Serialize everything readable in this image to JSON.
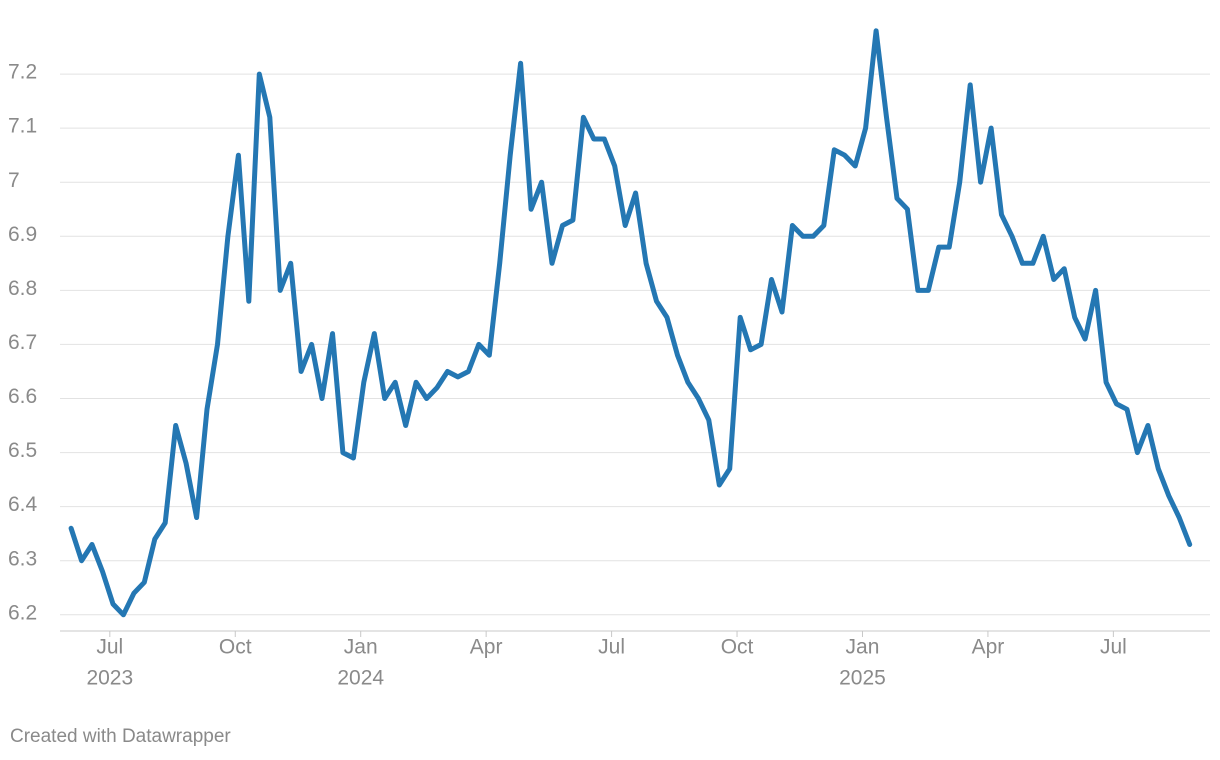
{
  "chart_data": {
    "type": "line",
    "x": [
      "2023-06",
      "2023-06",
      "2023-06",
      "2023-06",
      "2023-07",
      "2023-07",
      "2023-07",
      "2023-07",
      "2023-08",
      "2023-08",
      "2023-08",
      "2023-08",
      "2023-09",
      "2023-09",
      "2023-09",
      "2023-09",
      "2023-10",
      "2023-10",
      "2023-10",
      "2023-10",
      "2023-11",
      "2023-11",
      "2023-11",
      "2023-11",
      "2023-12",
      "2023-12",
      "2023-12",
      "2023-12",
      "2024-01",
      "2024-01",
      "2024-01",
      "2024-01",
      "2024-02",
      "2024-02",
      "2024-02",
      "2024-02",
      "2024-03",
      "2024-03",
      "2024-03",
      "2024-03",
      "2024-04",
      "2024-04",
      "2024-04",
      "2024-04",
      "2024-05",
      "2024-05",
      "2024-05",
      "2024-05",
      "2024-06",
      "2024-06",
      "2024-06",
      "2024-06",
      "2024-07",
      "2024-07",
      "2024-07",
      "2024-07",
      "2024-08",
      "2024-08",
      "2024-08",
      "2024-08",
      "2024-09",
      "2024-09",
      "2024-09",
      "2024-09",
      "2024-10",
      "2024-10",
      "2024-10",
      "2024-10",
      "2024-11",
      "2024-11",
      "2024-11",
      "2024-11",
      "2024-12",
      "2024-12",
      "2024-12",
      "2024-12",
      "2025-01",
      "2025-01",
      "2025-01",
      "2025-01",
      "2025-02",
      "2025-02",
      "2025-02",
      "2025-02",
      "2025-03",
      "2025-03",
      "2025-03",
      "2025-03",
      "2025-04",
      "2025-04",
      "2025-04",
      "2025-04",
      "2025-05",
      "2025-05",
      "2025-05",
      "2025-05",
      "2025-06",
      "2025-06",
      "2025-06",
      "2025-06",
      "2025-07",
      "2025-07",
      "2025-07",
      "2025-07",
      "2025-08",
      "2025-08",
      "2025-08",
      "2025-08"
    ],
    "series": [
      {
        "color": "#2477b3",
        "values": [
          6.36,
          6.3,
          6.33,
          6.28,
          6.22,
          6.2,
          6.24,
          6.26,
          6.34,
          6.37,
          6.55,
          6.48,
          6.38,
          6.58,
          6.7,
          6.9,
          7.05,
          6.78,
          7.2,
          7.12,
          6.8,
          6.85,
          6.65,
          6.7,
          6.6,
          6.72,
          6.5,
          6.49,
          6.63,
          6.72,
          6.6,
          6.63,
          6.55,
          6.63,
          6.6,
          6.62,
          6.65,
          6.64,
          6.65,
          6.7,
          6.68,
          6.85,
          7.05,
          7.22,
          6.95,
          7.0,
          6.85,
          6.92,
          6.93,
          7.12,
          7.08,
          7.08,
          7.03,
          6.92,
          6.98,
          6.85,
          6.78,
          6.75,
          6.68,
          6.63,
          6.6,
          6.56,
          6.44,
          6.47,
          6.75,
          6.69,
          6.7,
          6.82,
          6.76,
          6.92,
          6.9,
          6.9,
          6.92,
          7.06,
          7.05,
          7.03,
          7.1,
          7.28,
          7.12,
          6.97,
          6.95,
          6.8,
          6.8,
          6.88,
          6.88,
          7.0,
          7.18,
          7.0,
          7.1,
          6.94,
          6.9,
          6.85,
          6.85,
          6.9,
          6.82,
          6.84,
          6.75,
          6.71,
          6.8,
          6.63,
          6.59,
          6.58,
          6.5,
          6.55,
          6.47,
          6.42,
          6.38,
          6.33
        ]
      }
    ],
    "xlim": [
      "2023-06",
      "2025-08"
    ],
    "xticks": [
      {
        "value": "2023-07",
        "label": "Jul",
        "year": "2023"
      },
      {
        "value": "2023-10",
        "label": "Oct"
      },
      {
        "value": "2024-01",
        "label": "Jan",
        "year": "2024"
      },
      {
        "value": "2024-04",
        "label": "Apr"
      },
      {
        "value": "2024-07",
        "label": "Jul"
      },
      {
        "value": "2024-10",
        "label": "Oct"
      },
      {
        "value": "2025-01",
        "label": "Jan",
        "year": "2025"
      },
      {
        "value": "2025-04",
        "label": "Apr"
      },
      {
        "value": "2025-07",
        "label": "Jul"
      }
    ],
    "ylim": [
      6.17,
      7.3
    ],
    "yticks": [
      6.2,
      6.3,
      6.4,
      6.5,
      6.6,
      6.7,
      6.8,
      6.9,
      7.0,
      7.1,
      7.2
    ],
    "grid": true,
    "footer": "Created with Datawrapper"
  }
}
